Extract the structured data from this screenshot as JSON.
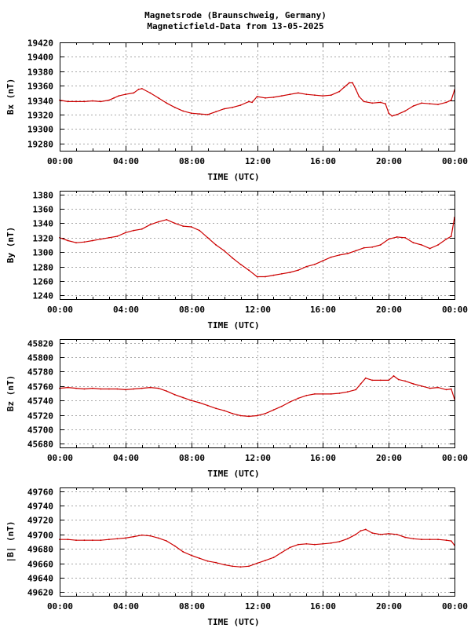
{
  "figure": {
    "title_line1": "Magnetsrode (Braunschweig, Germany)",
    "title_line2": "Magneticfield-Data from 13-05-2025",
    "series_color": "#cc0000",
    "grid": true
  },
  "chart_data": [
    {
      "type": "line",
      "ylabel": "Bx (nT)",
      "xlabel": "TIME (UTC)",
      "xlim": [
        0,
        24
      ],
      "ylim": [
        19270,
        19420
      ],
      "yticks": [
        19280,
        19300,
        19320,
        19340,
        19360,
        19380,
        19400,
        19420
      ],
      "xtick_labels": [
        "00:00",
        "04:00",
        "08:00",
        "12:00",
        "16:00",
        "20:00",
        "00:00"
      ],
      "x": [
        0,
        0.5,
        1,
        1.5,
        2,
        2.5,
        3,
        3.3,
        3.6,
        4,
        4.5,
        4.8,
        5,
        5.5,
        6,
        6.5,
        7,
        7.5,
        8,
        8.5,
        9,
        9.5,
        10,
        10.5,
        11,
        11.5,
        11.7,
        12,
        12.5,
        13,
        13.5,
        14,
        14.5,
        15,
        15.5,
        16,
        16.5,
        17,
        17.3,
        17.6,
        17.8,
        18,
        18.2,
        18.5,
        19,
        19.5,
        19.8,
        20,
        20.2,
        20.5,
        21,
        21.5,
        22,
        22.5,
        23,
        23.5,
        23.8,
        24
      ],
      "values": [
        19340,
        19338,
        19338,
        19338,
        19339,
        19338,
        19340,
        19343,
        19346,
        19348,
        19350,
        19355,
        19356,
        19350,
        19343,
        19336,
        19330,
        19325,
        19322,
        19321,
        19320,
        19324,
        19328,
        19330,
        19333,
        19338,
        19337,
        19345,
        19343,
        19344,
        19346,
        19348,
        19350,
        19348,
        19347,
        19346,
        19347,
        19352,
        19358,
        19364,
        19364,
        19355,
        19345,
        19338,
        19336,
        19337,
        19335,
        19322,
        19318,
        19320,
        19325,
        19332,
        19336,
        19335,
        19334,
        19337,
        19340,
        19354
      ]
    },
    {
      "type": "line",
      "ylabel": "By (nT)",
      "xlabel": "TIME (UTC)",
      "xlim": [
        0,
        24
      ],
      "ylim": [
        1235,
        1385
      ],
      "yticks": [
        1240,
        1260,
        1280,
        1300,
        1320,
        1340,
        1360,
        1380
      ],
      "xtick_labels": [
        "00:00",
        "04:00",
        "08:00",
        "12:00",
        "16:00",
        "20:00",
        "00:00"
      ],
      "x": [
        0,
        0.5,
        1,
        1.5,
        2,
        2.5,
        3,
        3.5,
        4,
        4.5,
        5,
        5.5,
        6,
        6.5,
        7,
        7.5,
        8,
        8.5,
        9,
        9.5,
        10,
        10.5,
        11,
        11.5,
        12,
        12.5,
        13,
        13.5,
        14,
        14.5,
        15,
        15.5,
        16,
        16.5,
        17,
        17.5,
        18,
        18.5,
        19,
        19.5,
        20,
        20.5,
        21,
        21.5,
        22,
        22.5,
        23,
        23.5,
        23.8,
        24
      ],
      "values": [
        1320,
        1316,
        1313,
        1314,
        1316,
        1318,
        1320,
        1322,
        1327,
        1330,
        1332,
        1338,
        1342,
        1345,
        1340,
        1336,
        1335,
        1330,
        1320,
        1310,
        1302,
        1292,
        1283,
        1275,
        1266,
        1266,
        1268,
        1270,
        1272,
        1275,
        1280,
        1283,
        1288,
        1293,
        1296,
        1298,
        1302,
        1306,
        1307,
        1310,
        1318,
        1321,
        1320,
        1313,
        1310,
        1305,
        1310,
        1318,
        1322,
        1348
      ]
    },
    {
      "type": "line",
      "ylabel": "Bz (nT)",
      "xlabel": "TIME (UTC)",
      "xlim": [
        0,
        24
      ],
      "ylim": [
        45675,
        45825
      ],
      "yticks": [
        45680,
        45700,
        45720,
        45740,
        45760,
        45780,
        45800,
        45820
      ],
      "xtick_labels": [
        "00:00",
        "04:00",
        "08:00",
        "12:00",
        "16:00",
        "20:00",
        "00:00"
      ],
      "x": [
        0,
        0.5,
        1,
        1.5,
        2,
        2.5,
        3,
        3.5,
        4,
        4.5,
        5,
        5.5,
        6,
        6.5,
        7,
        7.5,
        8,
        8.5,
        9,
        9.5,
        10,
        10.5,
        11,
        11.5,
        12,
        12.5,
        13,
        13.5,
        14,
        14.5,
        15,
        15.5,
        16,
        16.5,
        17,
        17.5,
        18,
        18.3,
        18.6,
        19,
        19.5,
        20,
        20.3,
        20.6,
        21,
        21.5,
        22,
        22.5,
        23,
        23.5,
        23.8,
        24
      ],
      "values": [
        45757,
        45758,
        45757,
        45756,
        45757,
        45756,
        45756,
        45756,
        45755,
        45756,
        45757,
        45758,
        45757,
        45753,
        45748,
        45744,
        45740,
        45737,
        45733,
        45729,
        45726,
        45722,
        45719,
        45718,
        45719,
        45722,
        45727,
        45732,
        45738,
        45743,
        45747,
        45749,
        45749,
        45749,
        45750,
        45752,
        45755,
        45763,
        45771,
        45768,
        45768,
        45768,
        45774,
        45769,
        45767,
        45763,
        45760,
        45757,
        45758,
        45755,
        45756,
        45742
      ]
    },
    {
      "type": "line",
      "ylabel": "|B| (nT)",
      "xlabel": "TIME (UTC)",
      "xlim": [
        0,
        24
      ],
      "ylim": [
        49615,
        49765
      ],
      "yticks": [
        49620,
        49640,
        49660,
        49680,
        49700,
        49720,
        49740,
        49760
      ],
      "xtick_labels": [
        "00:00",
        "04:00",
        "08:00",
        "12:00",
        "16:00",
        "20:00",
        "00:00"
      ],
      "x": [
        0,
        0.5,
        1,
        1.5,
        2,
        2.5,
        3,
        3.5,
        4,
        4.5,
        5,
        5.5,
        6,
        6.5,
        7,
        7.5,
        8,
        8.5,
        9,
        9.5,
        10,
        10.5,
        11,
        11.5,
        12,
        12.5,
        13,
        13.5,
        14,
        14.5,
        15,
        15.5,
        16,
        16.5,
        17,
        17.5,
        18,
        18.3,
        18.6,
        19,
        19.5,
        20,
        20.5,
        21,
        21.5,
        22,
        22.5,
        23,
        23.5,
        23.8,
        24
      ],
      "values": [
        49693,
        49693,
        49692,
        49692,
        49692,
        49692,
        49693,
        49694,
        49695,
        49697,
        49699,
        49698,
        49695,
        49691,
        49684,
        49676,
        49671,
        49667,
        49663,
        49661,
        49658,
        49656,
        49655,
        49656,
        49660,
        49664,
        49668,
        49675,
        49682,
        49686,
        49687,
        49686,
        49687,
        49688,
        49690,
        49694,
        49700,
        49705,
        49707,
        49702,
        49700,
        49701,
        49700,
        49696,
        49694,
        49693,
        49693,
        49693,
        49692,
        49691,
        49685
      ]
    }
  ]
}
